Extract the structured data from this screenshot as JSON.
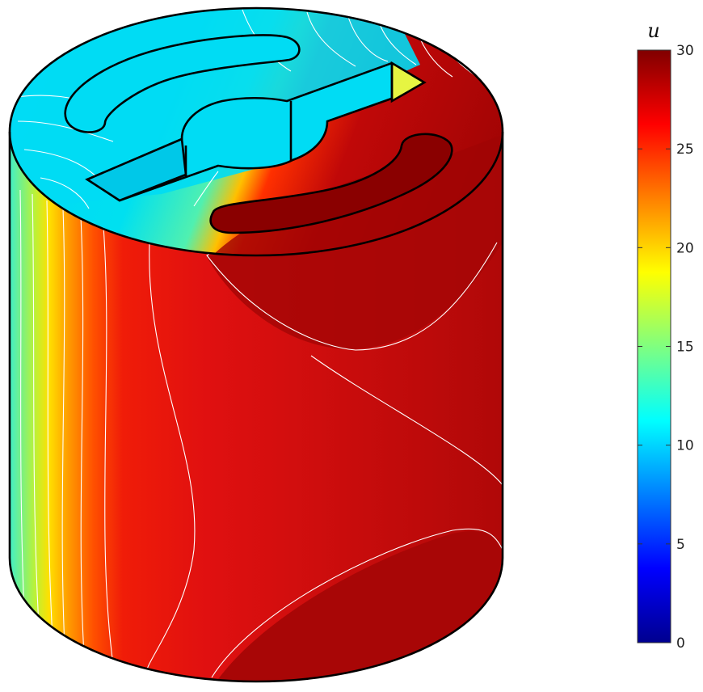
{
  "chart_data": {
    "type": "heatmap",
    "title": "",
    "colorbar": {
      "label": "u",
      "colormap": "jet",
      "range": [
        0,
        30
      ],
      "ticks": [
        0,
        5,
        10,
        15,
        20,
        25,
        30
      ],
      "tick_labels": [
        "0",
        "5",
        "10",
        "15",
        "20",
        "25",
        "30"
      ]
    },
    "field_regions": [
      {
        "name": "top-left face",
        "value": 10
      },
      {
        "name": "bottom-right face",
        "value": 29
      },
      {
        "name": "side wall left edge",
        "value": 13
      },
      {
        "name": "side wall center",
        "value": 27
      },
      {
        "name": "side wall right",
        "value": 28
      },
      {
        "name": "inner slot highlight",
        "value": 30
      }
    ],
    "contour_color": "#ffffff",
    "outline_color": "#000000"
  }
}
